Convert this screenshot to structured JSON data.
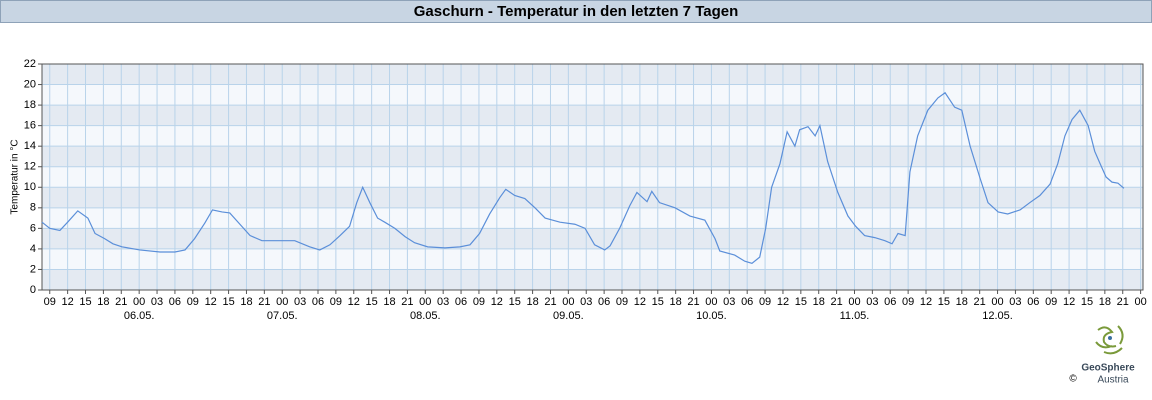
{
  "chart_data": {
    "type": "line",
    "title": "Gaschurn - Temperatur in den letzten 7 Tagen",
    "y_label": "Temperatur in °C",
    "ylim": [
      0,
      22
    ],
    "yticks": [
      0,
      2,
      4,
      6,
      8,
      10,
      12,
      14,
      16,
      18,
      20,
      22
    ],
    "xlim": [
      -1.3,
      183.4
    ],
    "xticks": [
      {
        "value": 0,
        "label": "09"
      },
      {
        "value": 3,
        "label": "12"
      },
      {
        "value": 6,
        "label": "15"
      },
      {
        "value": 9,
        "label": "18"
      },
      {
        "value": 12,
        "label": "21"
      },
      {
        "value": 15,
        "label": "00"
      },
      {
        "value": 18,
        "label": "03"
      },
      {
        "value": 21,
        "label": "06"
      },
      {
        "value": 24,
        "label": "09"
      },
      {
        "value": 27,
        "label": "12"
      },
      {
        "value": 30,
        "label": "15"
      },
      {
        "value": 33,
        "label": "18"
      },
      {
        "value": 36,
        "label": "21"
      },
      {
        "value": 39,
        "label": "00"
      },
      {
        "value": 42,
        "label": "03"
      },
      {
        "value": 45,
        "label": "06"
      },
      {
        "value": 48,
        "label": "09"
      },
      {
        "value": 51,
        "label": "12"
      },
      {
        "value": 54,
        "label": "15"
      },
      {
        "value": 57,
        "label": "18"
      },
      {
        "value": 60,
        "label": "21"
      },
      {
        "value": 63,
        "label": "00"
      },
      {
        "value": 66,
        "label": "03"
      },
      {
        "value": 69,
        "label": "06"
      },
      {
        "value": 72,
        "label": "09"
      },
      {
        "value": 75,
        "label": "12"
      },
      {
        "value": 78,
        "label": "15"
      },
      {
        "value": 81,
        "label": "18"
      },
      {
        "value": 84,
        "label": "21"
      },
      {
        "value": 87,
        "label": "00"
      },
      {
        "value": 90,
        "label": "03"
      },
      {
        "value": 93,
        "label": "06"
      },
      {
        "value": 96,
        "label": "09"
      },
      {
        "value": 99,
        "label": "12"
      },
      {
        "value": 102,
        "label": "15"
      },
      {
        "value": 105,
        "label": "18"
      },
      {
        "value": 108,
        "label": "21"
      },
      {
        "value": 111,
        "label": "00"
      },
      {
        "value": 114,
        "label": "03"
      },
      {
        "value": 117,
        "label": "06"
      },
      {
        "value": 120,
        "label": "09"
      },
      {
        "value": 123,
        "label": "12"
      },
      {
        "value": 126,
        "label": "15"
      },
      {
        "value": 129,
        "label": "18"
      },
      {
        "value": 132,
        "label": "21"
      },
      {
        "value": 135,
        "label": "00"
      },
      {
        "value": 138,
        "label": "03"
      },
      {
        "value": 141,
        "label": "06"
      },
      {
        "value": 144,
        "label": "09"
      },
      {
        "value": 147,
        "label": "12"
      },
      {
        "value": 150,
        "label": "15"
      },
      {
        "value": 153,
        "label": "18"
      },
      {
        "value": 156,
        "label": "21"
      },
      {
        "value": 159,
        "label": "00"
      },
      {
        "value": 162,
        "label": "03"
      },
      {
        "value": 165,
        "label": "06"
      },
      {
        "value": 168,
        "label": "09"
      },
      {
        "value": 171,
        "label": "12"
      },
      {
        "value": 174,
        "label": "15"
      },
      {
        "value": 177,
        "label": "18"
      },
      {
        "value": 180,
        "label": "21"
      },
      {
        "value": 183,
        "label": "00"
      }
    ],
    "date_labels": [
      {
        "value": 15,
        "label": "06.05."
      },
      {
        "value": 39,
        "label": "07.05."
      },
      {
        "value": 63,
        "label": "08.05."
      },
      {
        "value": 87,
        "label": "09.05."
      },
      {
        "value": 111,
        "label": "10.05."
      },
      {
        "value": 135,
        "label": "11.05."
      },
      {
        "value": 159,
        "label": "12.05."
      }
    ],
    "grid": true,
    "color": "#5b8fd9",
    "x": [
      -1.3,
      0,
      1.7,
      3,
      4.7,
      6.4,
      7.6,
      9.2,
      10.6,
      12.1,
      15.1,
      18.5,
      21,
      22.7,
      24.3,
      26,
      27.3,
      28.9,
      30.2,
      31.9,
      33.6,
      35.6,
      38.6,
      41.1,
      43.6,
      45.3,
      47,
      48.7,
      50.3,
      51.5,
      52.5,
      53.7,
      55,
      56.2,
      57.9,
      59.6,
      61.2,
      63.4,
      66.3,
      68.8,
      70.5,
      72.1,
      73.8,
      75.5,
      76.5,
      78,
      79.7,
      81.4,
      83.1,
      85.6,
      88.1,
      89.8,
      91.4,
      93.1,
      94,
      95.6,
      97.3,
      98.5,
      100.2,
      101,
      102.3,
      104.9,
      107.4,
      109.9,
      111.6,
      112.4,
      114.9,
      116.6,
      117.8,
      119.1,
      120.1,
      121.1,
      122.5,
      123.7,
      125,
      125.8,
      127.2,
      128.4,
      129.2,
      130.5,
      132.2,
      133.9,
      135.2,
      136.7,
      138.4,
      140.1,
      141.3,
      142.3,
      143.5,
      144.3,
      145.6,
      147.3,
      149,
      150.2,
      151.8,
      153,
      154.4,
      156,
      157.4,
      159.1,
      160.7,
      162.8,
      164.4,
      166.1,
      167.8,
      169.1,
      170.3,
      171.5,
      172.8,
      174.2,
      175.3,
      176.2,
      177.2,
      178.2,
      179.2,
      180.2
    ],
    "values": [
      6.6,
      6.0,
      5.8,
      6.6,
      7.7,
      7.0,
      5.5,
      5.0,
      4.5,
      4.2,
      3.9,
      3.7,
      3.7,
      3.9,
      5.0,
      6.5,
      7.8,
      7.6,
      7.5,
      6.4,
      5.3,
      4.8,
      4.8,
      4.8,
      4.2,
      3.9,
      4.4,
      5.3,
      6.2,
      8.5,
      10.0,
      8.5,
      7.0,
      6.6,
      6.0,
      5.2,
      4.6,
      4.2,
      4.1,
      4.2,
      4.4,
      5.5,
      7.4,
      9.0,
      9.8,
      9.2,
      8.9,
      8.0,
      7.0,
      6.6,
      6.4,
      6.0,
      4.4,
      3.9,
      4.3,
      6.0,
      8.2,
      9.5,
      8.6,
      9.6,
      8.5,
      8.0,
      7.2,
      6.8,
      5.0,
      3.8,
      3.4,
      2.8,
      2.6,
      3.2,
      6.0,
      10.0,
      12.3,
      15.4,
      14.0,
      15.6,
      15.9,
      15.0,
      16.0,
      12.5,
      9.5,
      7.2,
      6.2,
      5.3,
      5.1,
      4.8,
      4.5,
      5.5,
      5.3,
      11.5,
      15.0,
      17.5,
      18.7,
      19.2,
      17.8,
      17.5,
      14.0,
      11.0,
      8.5,
      7.6,
      7.4,
      7.8,
      8.5,
      9.2,
      10.3,
      12.3,
      15.0,
      16.6,
      17.5,
      16.0,
      13.5,
      12.3,
      11.0,
      10.5,
      10.4,
      9.9
    ],
    "logo": {
      "name": "GeoSphere",
      "sub": "Austria",
      "copyright": "©"
    }
  }
}
